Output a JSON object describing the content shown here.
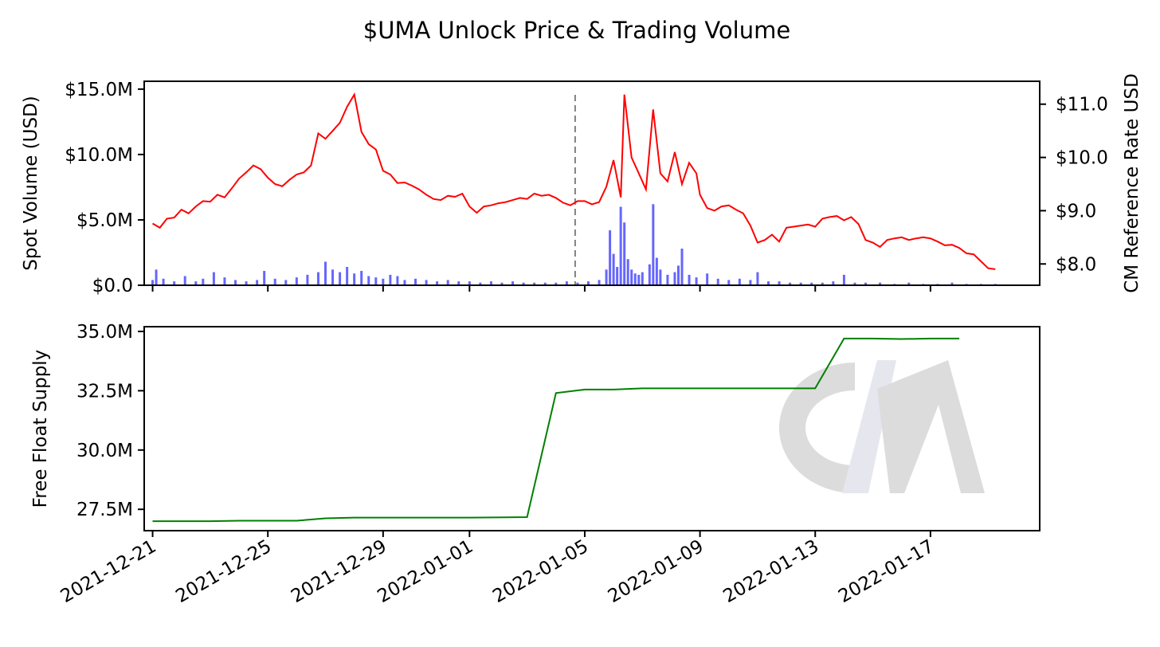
{
  "title": "$UMA Unlock Price & Trading Volume",
  "watermark": "CM",
  "colors": {
    "price": "#ff0000",
    "volume": "#6666ff",
    "supply": "#008000",
    "unlock_marker": "#808080",
    "watermark_c": "#dcdcdc",
    "watermark_m_left": "#e6e6ee",
    "watermark_m_right": "#dcdcdc"
  },
  "chart_data": [
    {
      "type": "line+bar",
      "panel": "top",
      "ylabel_left": "Spot Volume (USD)",
      "ylabel_right": "CM Reference Rate USD",
      "x_range": [
        "2021-12-20T17:00",
        "2022-01-20T19:00"
      ],
      "ylim_left": [
        0,
        15.6
      ],
      "ylim_left_unit": "M USD",
      "ylim_right": [
        7.6,
        11.43
      ],
      "yticks_left": [
        0,
        5,
        10,
        15
      ],
      "yticks_left_labels": [
        "$0.0",
        "$5.0M",
        "$10.0M",
        "$15.0M"
      ],
      "yticks_right": [
        8,
        9,
        10,
        11
      ],
      "yticks_right_labels": [
        "$8.0",
        "$9.0",
        "$10.0",
        "$11.0"
      ],
      "unlock_marker_date": "2022-01-04T16:00",
      "price_series": {
        "name": "CM Reference Rate USD",
        "points": [
          [
            "2021-12-21T00:00",
            8.76
          ],
          [
            "2021-12-21T06:00",
            8.68
          ],
          [
            "2021-12-21T12:00",
            8.85
          ],
          [
            "2021-12-21T18:00",
            8.87
          ],
          [
            "2021-12-22T00:00",
            9.02
          ],
          [
            "2021-12-22T06:00",
            8.95
          ],
          [
            "2021-12-22T12:00",
            9.08
          ],
          [
            "2021-12-22T18:00",
            9.18
          ],
          [
            "2021-12-23T00:00",
            9.17
          ],
          [
            "2021-12-23T06:00",
            9.3
          ],
          [
            "2021-12-23T12:00",
            9.25
          ],
          [
            "2021-12-23T18:00",
            9.42
          ],
          [
            "2021-12-24T00:00",
            9.6
          ],
          [
            "2021-12-24T06:00",
            9.72
          ],
          [
            "2021-12-24T12:00",
            9.85
          ],
          [
            "2021-12-24T18:00",
            9.78
          ],
          [
            "2021-12-25T00:00",
            9.62
          ],
          [
            "2021-12-25T06:00",
            9.5
          ],
          [
            "2021-12-25T12:00",
            9.46
          ],
          [
            "2021-12-25T18:00",
            9.58
          ],
          [
            "2021-12-26T00:00",
            9.68
          ],
          [
            "2021-12-26T06:00",
            9.72
          ],
          [
            "2021-12-26T12:00",
            9.85
          ],
          [
            "2021-12-26T18:00",
            10.45
          ],
          [
            "2021-12-27T00:00",
            10.35
          ],
          [
            "2021-12-27T06:00",
            10.5
          ],
          [
            "2021-12-27T12:00",
            10.65
          ],
          [
            "2021-12-27T18:00",
            10.95
          ],
          [
            "2021-12-28T00:00",
            11.18
          ],
          [
            "2021-12-28T06:00",
            10.48
          ],
          [
            "2021-12-28T12:00",
            10.25
          ],
          [
            "2021-12-28T18:00",
            10.15
          ],
          [
            "2021-12-29T00:00",
            9.75
          ],
          [
            "2021-12-29T06:00",
            9.68
          ],
          [
            "2021-12-29T12:00",
            9.52
          ],
          [
            "2021-12-29T18:00",
            9.53
          ],
          [
            "2021-12-30T00:00",
            9.47
          ],
          [
            "2021-12-30T06:00",
            9.4
          ],
          [
            "2021-12-30T12:00",
            9.3
          ],
          [
            "2021-12-30T18:00",
            9.22
          ],
          [
            "2021-12-31T00:00",
            9.2
          ],
          [
            "2021-12-31T06:00",
            9.28
          ],
          [
            "2021-12-31T12:00",
            9.26
          ],
          [
            "2021-12-31T18:00",
            9.32
          ],
          [
            "2022-01-01T00:00",
            9.08
          ],
          [
            "2022-01-01T06:00",
            8.96
          ],
          [
            "2022-01-01T12:00",
            9.08
          ],
          [
            "2022-01-01T18:00",
            9.1
          ],
          [
            "2022-01-02T00:00",
            9.14
          ],
          [
            "2022-01-02T06:00",
            9.16
          ],
          [
            "2022-01-02T12:00",
            9.2
          ],
          [
            "2022-01-02T18:00",
            9.24
          ],
          [
            "2022-01-03T00:00",
            9.22
          ],
          [
            "2022-01-03T06:00",
            9.32
          ],
          [
            "2022-01-03T12:00",
            9.28
          ],
          [
            "2022-01-03T18:00",
            9.3
          ],
          [
            "2022-01-04T00:00",
            9.24
          ],
          [
            "2022-01-04T06:00",
            9.15
          ],
          [
            "2022-01-04T12:00",
            9.1
          ],
          [
            "2022-01-04T18:00",
            9.18
          ],
          [
            "2022-01-05T00:00",
            9.18
          ],
          [
            "2022-01-05T06:00",
            9.12
          ],
          [
            "2022-01-05T12:00",
            9.16
          ],
          [
            "2022-01-05T18:00",
            9.45
          ],
          [
            "2022-01-06T00:00",
            9.95
          ],
          [
            "2022-01-06T06:00",
            9.25
          ],
          [
            "2022-01-06T09:00",
            11.18
          ],
          [
            "2022-01-06T15:00",
            10.0
          ],
          [
            "2022-01-06T21:00",
            9.7
          ],
          [
            "2022-01-07T03:00",
            9.4
          ],
          [
            "2022-01-07T09:00",
            10.9
          ],
          [
            "2022-01-07T15:00",
            9.7
          ],
          [
            "2022-01-07T21:00",
            9.55
          ],
          [
            "2022-01-08T03:00",
            10.1
          ],
          [
            "2022-01-08T09:00",
            9.5
          ],
          [
            "2022-01-08T15:00",
            9.9
          ],
          [
            "2022-01-08T21:00",
            9.7
          ],
          [
            "2022-01-09T00:00",
            9.3
          ],
          [
            "2022-01-09T06:00",
            9.05
          ],
          [
            "2022-01-09T12:00",
            9.0
          ],
          [
            "2022-01-09T18:00",
            9.08
          ],
          [
            "2022-01-10T00:00",
            9.1
          ],
          [
            "2022-01-10T06:00",
            9.02
          ],
          [
            "2022-01-10T12:00",
            8.95
          ],
          [
            "2022-01-10T18:00",
            8.72
          ],
          [
            "2022-01-11T00:00",
            8.4
          ],
          [
            "2022-01-11T06:00",
            8.45
          ],
          [
            "2022-01-11T12:00",
            8.55
          ],
          [
            "2022-01-11T18:00",
            8.42
          ],
          [
            "2022-01-12T00:00",
            8.68
          ],
          [
            "2022-01-12T06:00",
            8.7
          ],
          [
            "2022-01-12T12:00",
            8.72
          ],
          [
            "2022-01-12T18:00",
            8.74
          ],
          [
            "2022-01-13T00:00",
            8.7
          ],
          [
            "2022-01-13T06:00",
            8.85
          ],
          [
            "2022-01-13T12:00",
            8.88
          ],
          [
            "2022-01-13T18:00",
            8.9
          ],
          [
            "2022-01-14T00:00",
            8.82
          ],
          [
            "2022-01-14T06:00",
            8.88
          ],
          [
            "2022-01-14T12:00",
            8.75
          ],
          [
            "2022-01-14T18:00",
            8.45
          ],
          [
            "2022-01-15T00:00",
            8.4
          ],
          [
            "2022-01-15T06:00",
            8.32
          ],
          [
            "2022-01-15T12:00",
            8.45
          ],
          [
            "2022-01-15T18:00",
            8.48
          ],
          [
            "2022-01-16T00:00",
            8.5
          ],
          [
            "2022-01-16T06:00",
            8.45
          ],
          [
            "2022-01-16T12:00",
            8.48
          ],
          [
            "2022-01-16T18:00",
            8.5
          ],
          [
            "2022-01-17T00:00",
            8.48
          ],
          [
            "2022-01-17T06:00",
            8.42
          ],
          [
            "2022-01-17T12:00",
            8.35
          ],
          [
            "2022-01-17T18:00",
            8.36
          ],
          [
            "2022-01-18T00:00",
            8.3
          ],
          [
            "2022-01-18T06:00",
            8.2
          ],
          [
            "2022-01-18T12:00",
            8.18
          ],
          [
            "2022-01-18T18:00",
            8.05
          ],
          [
            "2022-01-19T00:00",
            7.92
          ],
          [
            "2022-01-19T06:00",
            7.9
          ]
        ]
      },
      "volume_series": {
        "name": "Spot Volume (USD)",
        "unit": "M USD",
        "points": [
          [
            "2021-12-21T00:00",
            0.4
          ],
          [
            "2021-12-21T03:00",
            1.2
          ],
          [
            "2021-12-21T09:00",
            0.5
          ],
          [
            "2021-12-21T18:00",
            0.3
          ],
          [
            "2021-12-22T03:00",
            0.7
          ],
          [
            "2021-12-22T12:00",
            0.3
          ],
          [
            "2021-12-22T18:00",
            0.5
          ],
          [
            "2021-12-23T03:00",
            1.0
          ],
          [
            "2021-12-23T12:00",
            0.6
          ],
          [
            "2021-12-23T21:00",
            0.4
          ],
          [
            "2021-12-24T06:00",
            0.3
          ],
          [
            "2021-12-24T15:00",
            0.4
          ],
          [
            "2021-12-24T21:00",
            1.1
          ],
          [
            "2021-12-25T06:00",
            0.5
          ],
          [
            "2021-12-25T15:00",
            0.4
          ],
          [
            "2021-12-26T00:00",
            0.6
          ],
          [
            "2021-12-26T09:00",
            0.8
          ],
          [
            "2021-12-26T18:00",
            1.0
          ],
          [
            "2021-12-27T00:00",
            1.8
          ],
          [
            "2021-12-27T06:00",
            1.2
          ],
          [
            "2021-12-27T12:00",
            1.0
          ],
          [
            "2021-12-27T18:00",
            1.4
          ],
          [
            "2021-12-28T00:00",
            0.9
          ],
          [
            "2021-12-28T06:00",
            1.1
          ],
          [
            "2021-12-28T12:00",
            0.7
          ],
          [
            "2021-12-28T18:00",
            0.6
          ],
          [
            "2021-12-29T00:00",
            0.5
          ],
          [
            "2021-12-29T06:00",
            0.8
          ],
          [
            "2021-12-29T12:00",
            0.7
          ],
          [
            "2021-12-29T18:00",
            0.4
          ],
          [
            "2021-12-30T03:00",
            0.5
          ],
          [
            "2021-12-30T12:00",
            0.4
          ],
          [
            "2021-12-30T21:00",
            0.3
          ],
          [
            "2021-12-31T06:00",
            0.4
          ],
          [
            "2021-12-31T15:00",
            0.3
          ],
          [
            "2022-01-01T00:00",
            0.3
          ],
          [
            "2022-01-01T09:00",
            0.2
          ],
          [
            "2022-01-01T18:00",
            0.3
          ],
          [
            "2022-01-02T03:00",
            0.2
          ],
          [
            "2022-01-02T12:00",
            0.3
          ],
          [
            "2022-01-02T21:00",
            0.2
          ],
          [
            "2022-01-03T06:00",
            0.2
          ],
          [
            "2022-01-03T15:00",
            0.2
          ],
          [
            "2022-01-04T00:00",
            0.2
          ],
          [
            "2022-01-04T09:00",
            0.3
          ],
          [
            "2022-01-04T18:00",
            0.2
          ],
          [
            "2022-01-05T03:00",
            0.3
          ],
          [
            "2022-01-05T12:00",
            0.4
          ],
          [
            "2022-01-05T18:00",
            1.2
          ],
          [
            "2022-01-05T21:00",
            4.2
          ],
          [
            "2022-01-06T00:00",
            2.4
          ],
          [
            "2022-01-06T03:00",
            1.4
          ],
          [
            "2022-01-06T06:00",
            6.0
          ],
          [
            "2022-01-06T09:00",
            4.8
          ],
          [
            "2022-01-06T12:00",
            2.0
          ],
          [
            "2022-01-06T15:00",
            1.2
          ],
          [
            "2022-01-06T18:00",
            0.9
          ],
          [
            "2022-01-06T21:00",
            0.8
          ],
          [
            "2022-01-07T00:00",
            1.0
          ],
          [
            "2022-01-07T06:00",
            1.6
          ],
          [
            "2022-01-07T09:00",
            6.2
          ],
          [
            "2022-01-07T12:00",
            2.1
          ],
          [
            "2022-01-07T15:00",
            1.2
          ],
          [
            "2022-01-07T21:00",
            0.8
          ],
          [
            "2022-01-08T03:00",
            1.0
          ],
          [
            "2022-01-08T06:00",
            1.5
          ],
          [
            "2022-01-08T09:00",
            2.8
          ],
          [
            "2022-01-08T15:00",
            0.8
          ],
          [
            "2022-01-08T21:00",
            0.6
          ],
          [
            "2022-01-09T06:00",
            0.9
          ],
          [
            "2022-01-09T15:00",
            0.5
          ],
          [
            "2022-01-10T00:00",
            0.4
          ],
          [
            "2022-01-10T09:00",
            0.5
          ],
          [
            "2022-01-10T18:00",
            0.4
          ],
          [
            "2022-01-11T00:00",
            1.0
          ],
          [
            "2022-01-11T09:00",
            0.3
          ],
          [
            "2022-01-11T18:00",
            0.3
          ],
          [
            "2022-01-12T03:00",
            0.2
          ],
          [
            "2022-01-12T12:00",
            0.2
          ],
          [
            "2022-01-12T21:00",
            0.2
          ],
          [
            "2022-01-13T06:00",
            0.2
          ],
          [
            "2022-01-13T15:00",
            0.3
          ],
          [
            "2022-01-14T00:00",
            0.8
          ],
          [
            "2022-01-14T09:00",
            0.2
          ],
          [
            "2022-01-14T18:00",
            0.2
          ],
          [
            "2022-01-15T06:00",
            0.2
          ],
          [
            "2022-01-15T18:00",
            0.1
          ],
          [
            "2022-01-16T06:00",
            0.2
          ],
          [
            "2022-01-16T18:00",
            0.1
          ],
          [
            "2022-01-17T06:00",
            0.1
          ],
          [
            "2022-01-17T18:00",
            0.2
          ],
          [
            "2022-01-18T06:00",
            0.1
          ],
          [
            "2022-01-18T18:00",
            0.1
          ],
          [
            "2022-01-19T06:00",
            0.1
          ]
        ]
      }
    },
    {
      "type": "line",
      "panel": "bottom",
      "ylabel": "Free Float Supply",
      "x_range": [
        "2021-12-20T17:00",
        "2022-01-20T19:00"
      ],
      "ylim": [
        26.6,
        35.2
      ],
      "ylim_unit": "M",
      "yticks": [
        27.5,
        30.0,
        32.5,
        35.0
      ],
      "yticks_labels": [
        "27.5M",
        "30.0M",
        "32.5M",
        "35.0M"
      ],
      "xticks": [
        "2021-12-21",
        "2021-12-25",
        "2021-12-29",
        "2022-01-01",
        "2022-01-05",
        "2022-01-09",
        "2022-01-13",
        "2022-01-17"
      ],
      "xticks_labels": [
        "2021-12-21",
        "2021-12-25",
        "2021-12-29",
        "2022-01-01",
        "2022-01-05",
        "2022-01-09",
        "2022-01-13",
        "2022-01-17"
      ],
      "supply_series": {
        "name": "Free Float Supply",
        "points": [
          [
            "2021-12-21",
            27.0
          ],
          [
            "2021-12-23",
            27.0
          ],
          [
            "2021-12-24",
            27.02
          ],
          [
            "2021-12-26",
            27.02
          ],
          [
            "2021-12-27",
            27.12
          ],
          [
            "2021-12-28",
            27.15
          ],
          [
            "2022-01-01",
            27.15
          ],
          [
            "2022-01-03",
            27.17
          ],
          [
            "2022-01-04",
            32.4
          ],
          [
            "2022-01-05",
            32.55
          ],
          [
            "2022-01-06",
            32.55
          ],
          [
            "2022-01-07",
            32.6
          ],
          [
            "2022-01-08",
            32.6
          ],
          [
            "2022-01-13",
            32.6
          ],
          [
            "2022-01-14",
            34.7
          ],
          [
            "2022-01-15",
            34.7
          ],
          [
            "2022-01-16",
            34.68
          ],
          [
            "2022-01-17",
            34.7
          ],
          [
            "2022-01-18",
            34.7
          ]
        ]
      }
    }
  ]
}
